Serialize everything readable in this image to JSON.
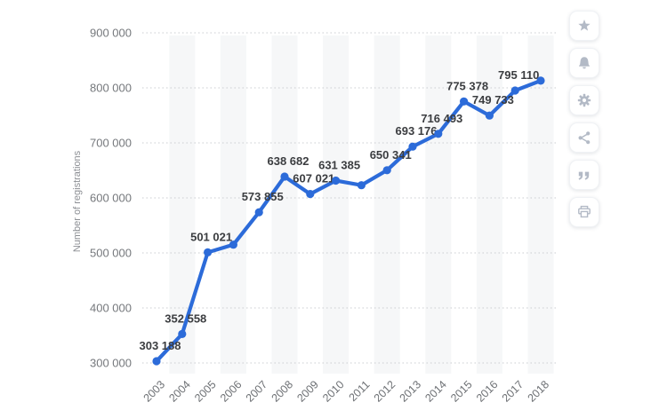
{
  "page": {
    "background": "#ffffff"
  },
  "chart_data": {
    "type": "line",
    "title": "",
    "xlabel": "",
    "ylabel": "Number of registrations",
    "x": [
      "2003",
      "2004",
      "2005",
      "2006",
      "2007",
      "2008",
      "2009",
      "2010",
      "2011",
      "2012",
      "2013",
      "2014",
      "2015",
      "2016",
      "2017",
      "2018"
    ],
    "values": [
      303188,
      352558,
      501021,
      515000,
      573855,
      638682,
      607021,
      631385,
      623000,
      650341,
      693176,
      716493,
      775378,
      749733,
      795110,
      813000
    ],
    "point_labels": [
      "303 188",
      "352 558",
      "501 021",
      "",
      "573 855",
      "638 682",
      "607 021",
      "631 385",
      "",
      "650 341",
      "693 176",
      "716 493",
      "775 378",
      "749 733",
      "795 110",
      ""
    ],
    "estimated_value_indices": [
      3,
      8,
      15
    ],
    "y_ticks": [
      "300 000",
      "400 000",
      "500 000",
      "600 000",
      "700 000",
      "800 000",
      "900 000"
    ],
    "ylim": [
      300000,
      900000
    ],
    "y_tick_step": 100000,
    "grid": "horizontal-dotted",
    "legend_position": "none",
    "line_color": "#2c6bd9",
    "stripe_color": "#f6f7f8",
    "gridline_color": "#c9ccd0",
    "tick_label_color": "#75787c",
    "x_label_color": "#6d7074",
    "axis_title_color": "#8b8e93",
    "data_label_color": "#3b3d40"
  },
  "toolbar": {
    "icon_color": "#b3bac6",
    "buttons": [
      {
        "name": "favorite",
        "icon": "star-icon"
      },
      {
        "name": "notifications",
        "icon": "bell-icon"
      },
      {
        "name": "settings",
        "icon": "gear-icon"
      },
      {
        "name": "share",
        "icon": "share-icon"
      },
      {
        "name": "cite",
        "icon": "quote-icon"
      },
      {
        "name": "print",
        "icon": "printer-icon"
      }
    ]
  }
}
